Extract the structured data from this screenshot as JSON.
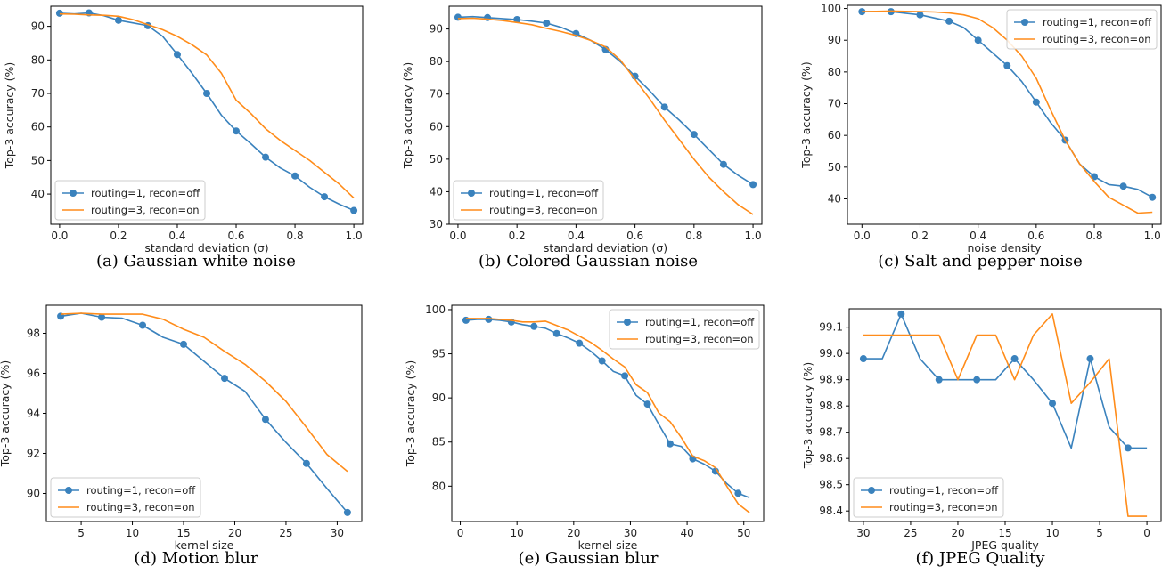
{
  "colors": {
    "routing1": "#3a82bd",
    "routing3": "#ff8c1a"
  },
  "chart_data": [
    {
      "id": "a",
      "type": "line",
      "caption": "(a) Gaussian white noise",
      "xlabel": "standard deviation (σ)",
      "ylabel": "Top-3 accuracy (%)",
      "xlim": [
        -0.03,
        1.03
      ],
      "ylim": [
        31,
        96
      ],
      "xticks": [
        0,
        0.2,
        0.4,
        0.6,
        0.8,
        1.0
      ],
      "xtick_labels": [
        "0.0",
        "0.2",
        "0.4",
        "0.6",
        "0.8",
        "1.0"
      ],
      "yticks": [
        40,
        50,
        60,
        70,
        80,
        90
      ],
      "ytick_labels": [
        "40",
        "50",
        "60",
        "70",
        "80",
        "90"
      ],
      "legend_position": "lower-left",
      "series": [
        {
          "name": "routing=1, recon=off",
          "markers": true,
          "x": [
            0,
            0.05,
            0.1,
            0.15,
            0.2,
            0.25,
            0.3,
            0.35,
            0.4,
            0.45,
            0.5,
            0.55,
            0.6,
            0.65,
            0.7,
            0.75,
            0.8,
            0.85,
            0.9,
            0.95,
            1.0
          ],
          "y": [
            93.9,
            93.7,
            94.0,
            93.2,
            91.8,
            91.0,
            90.2,
            87.0,
            81.6,
            76.0,
            70.0,
            63.5,
            58.8,
            55.0,
            51.0,
            47.8,
            45.4,
            42.0,
            39.2,
            37.0,
            35.1
          ],
          "marker_x": [
            0,
            0.1,
            0.2,
            0.3,
            0.4,
            0.5,
            0.6,
            0.7,
            0.8,
            0.9,
            1.0
          ],
          "marker_y": [
            93.9,
            94.0,
            91.8,
            90.2,
            81.6,
            70.0,
            58.8,
            51.0,
            45.4,
            39.2,
            35.1
          ]
        },
        {
          "name": "routing=3, recon=on",
          "markers": false,
          "x": [
            0,
            0.05,
            0.1,
            0.15,
            0.2,
            0.25,
            0.3,
            0.35,
            0.4,
            0.45,
            0.5,
            0.55,
            0.6,
            0.65,
            0.7,
            0.75,
            0.8,
            0.85,
            0.9,
            0.95,
            1.0
          ],
          "y": [
            93.7,
            93.6,
            93.4,
            93.3,
            93.0,
            92.0,
            90.5,
            89.0,
            87.0,
            84.5,
            81.5,
            76.0,
            68.0,
            64.0,
            59.5,
            56.0,
            53.0,
            50.0,
            46.5,
            43.0,
            38.8
          ]
        }
      ]
    },
    {
      "id": "b",
      "type": "line",
      "caption": "(b) Colored Gaussian noise",
      "xlabel": "standard deviation (σ)",
      "ylabel": "Top-3 accuracy (%)",
      "xlim": [
        -0.03,
        1.03
      ],
      "ylim": [
        30,
        97
      ],
      "xticks": [
        0,
        0.2,
        0.4,
        0.6,
        0.8,
        1.0
      ],
      "xtick_labels": [
        "0.0",
        "0.2",
        "0.4",
        "0.6",
        "0.8",
        "1.0"
      ],
      "yticks": [
        30,
        40,
        50,
        60,
        70,
        80,
        90
      ],
      "ytick_labels": [
        "30",
        "40",
        "50",
        "60",
        "70",
        "80",
        "90"
      ],
      "legend_position": "lower-left",
      "series": [
        {
          "name": "routing=1, recon=off",
          "markers": true,
          "x": [
            0,
            0.05,
            0.1,
            0.15,
            0.2,
            0.25,
            0.3,
            0.35,
            0.4,
            0.45,
            0.5,
            0.55,
            0.6,
            0.65,
            0.7,
            0.75,
            0.8,
            0.85,
            0.9,
            0.95,
            1.0
          ],
          "y": [
            93.6,
            93.8,
            93.5,
            93.2,
            92.9,
            92.4,
            91.8,
            90.5,
            88.6,
            86.5,
            83.7,
            80.0,
            75.5,
            71.0,
            66.0,
            62.0,
            57.6,
            53.0,
            48.4,
            45.0,
            42.2
          ],
          "marker_x": [
            0,
            0.1,
            0.2,
            0.3,
            0.4,
            0.5,
            0.6,
            0.7,
            0.8,
            0.9,
            1.0
          ],
          "marker_y": [
            93.6,
            93.5,
            92.9,
            91.8,
            88.6,
            83.7,
            75.5,
            66.0,
            57.6,
            48.4,
            42.2
          ]
        },
        {
          "name": "routing=3, recon=on",
          "markers": false,
          "x": [
            0,
            0.05,
            0.1,
            0.15,
            0.2,
            0.25,
            0.3,
            0.35,
            0.4,
            0.45,
            0.5,
            0.55,
            0.6,
            0.65,
            0.7,
            0.75,
            0.8,
            0.85,
            0.9,
            0.95,
            1.0
          ],
          "y": [
            93.2,
            93.3,
            93.0,
            92.6,
            92.0,
            91.3,
            90.2,
            89.2,
            88.0,
            86.5,
            84.5,
            80.5,
            74.5,
            68.5,
            62.0,
            56.0,
            50.0,
            44.5,
            40.0,
            36.0,
            33.0
          ]
        }
      ]
    },
    {
      "id": "c",
      "type": "line",
      "caption": "(c) Salt and pepper noise",
      "xlabel": "noise density",
      "ylabel": "Top-3 accuracy (%)",
      "xlim": [
        -0.05,
        1.03
      ],
      "ylim": [
        32,
        101
      ],
      "xticks": [
        0,
        0.2,
        0.4,
        0.6,
        0.8,
        1.0
      ],
      "xtick_labels": [
        "0.0",
        "0.2",
        "0.4",
        "0.6",
        "0.8",
        "1.0"
      ],
      "yticks": [
        40,
        50,
        60,
        70,
        80,
        90,
        100
      ],
      "ytick_labels": [
        "40",
        "50",
        "60",
        "70",
        "80",
        "90",
        "100"
      ],
      "legend_position": "upper-right",
      "series": [
        {
          "name": "routing=1, recon=off",
          "markers": true,
          "x": [
            0,
            0.05,
            0.1,
            0.15,
            0.2,
            0.25,
            0.3,
            0.35,
            0.4,
            0.45,
            0.5,
            0.55,
            0.6,
            0.65,
            0.7,
            0.75,
            0.8,
            0.85,
            0.9,
            0.95,
            1.0
          ],
          "y": [
            99.0,
            99.0,
            99.0,
            98.5,
            98.0,
            97.0,
            96.0,
            94.0,
            90.0,
            86.0,
            82.0,
            77.0,
            70.5,
            64.0,
            58.5,
            51.0,
            47.0,
            44.5,
            44.0,
            43.0,
            40.5
          ],
          "marker_x": [
            0,
            0.1,
            0.2,
            0.3,
            0.4,
            0.5,
            0.6,
            0.7,
            0.8,
            0.9,
            1.0
          ],
          "marker_y": [
            99.0,
            99.0,
            98.0,
            96.0,
            90.0,
            82.0,
            70.5,
            58.5,
            47.0,
            44.0,
            40.5
          ]
        },
        {
          "name": "routing=3, recon=on",
          "markers": false,
          "x": [
            0,
            0.05,
            0.1,
            0.15,
            0.2,
            0.25,
            0.3,
            0.35,
            0.4,
            0.45,
            0.5,
            0.55,
            0.6,
            0.65,
            0.7,
            0.75,
            0.8,
            0.85,
            0.9,
            0.95,
            1.0
          ],
          "y": [
            99.0,
            99.1,
            99.2,
            99.1,
            99.0,
            98.9,
            98.6,
            98.0,
            96.8,
            94.0,
            90.0,
            85.0,
            78.0,
            68.0,
            58.5,
            51.0,
            45.5,
            40.5,
            38.0,
            35.5,
            35.8
          ]
        }
      ]
    },
    {
      "id": "d",
      "type": "line",
      "caption": "(d) Motion blur",
      "xlabel": "kernel size",
      "ylabel": "Top-3 accuracy (%)",
      "xlim": [
        1.6,
        32.4
      ],
      "ylim": [
        88.6,
        99.4
      ],
      "xticks": [
        5,
        10,
        15,
        20,
        25,
        30
      ],
      "xtick_labels": [
        "5",
        "10",
        "15",
        "20",
        "25",
        "30"
      ],
      "yticks": [
        90,
        92,
        94,
        96,
        98
      ],
      "ytick_labels": [
        "90",
        "92",
        "94",
        "96",
        "98"
      ],
      "legend_position": "lower-left",
      "series": [
        {
          "name": "routing=1, recon=off",
          "markers": true,
          "x": [
            3,
            5,
            7,
            9,
            11,
            13,
            15,
            17,
            19,
            21,
            23,
            25,
            27,
            29,
            31
          ],
          "y": [
            98.85,
            99.0,
            98.8,
            98.75,
            98.4,
            97.8,
            97.45,
            96.6,
            95.75,
            95.1,
            93.7,
            92.55,
            91.5,
            90.25,
            89.05
          ],
          "marker_x": [
            3,
            7,
            11,
            15,
            19,
            23,
            27,
            31
          ],
          "marker_y": [
            98.85,
            98.8,
            98.4,
            97.45,
            95.75,
            93.7,
            91.5,
            89.05
          ]
        },
        {
          "name": "routing=3, recon=on",
          "markers": false,
          "x": [
            3,
            5,
            7,
            9,
            11,
            13,
            15,
            17,
            19,
            21,
            23,
            25,
            27,
            29,
            31
          ],
          "y": [
            98.95,
            99.0,
            98.95,
            98.95,
            98.95,
            98.7,
            98.2,
            97.8,
            97.1,
            96.45,
            95.6,
            94.6,
            93.3,
            91.95,
            91.1
          ]
        }
      ]
    },
    {
      "id": "e",
      "type": "line",
      "caption": "(e) Gaussian blur",
      "xlabel": "kernel size",
      "ylabel": "Top-3 accuracy (%)",
      "xlim": [
        -1.5,
        53.5
      ],
      "ylim": [
        76,
        100.5
      ],
      "xticks": [
        0,
        10,
        20,
        30,
        40,
        50
      ],
      "xtick_labels": [
        "0",
        "10",
        "20",
        "30",
        "40",
        "50"
      ],
      "yticks": [
        80,
        85,
        90,
        95,
        100
      ],
      "ytick_labels": [
        "80",
        "85",
        "90",
        "95",
        "100"
      ],
      "legend_position": "upper-right",
      "series": [
        {
          "name": "routing=1, recon=off",
          "markers": true,
          "x": [
            1,
            3,
            5,
            7,
            9,
            11,
            13,
            15,
            17,
            19,
            21,
            23,
            25,
            27,
            29,
            31,
            33,
            35,
            37,
            39,
            41,
            43,
            45,
            47,
            49,
            51
          ],
          "y": [
            98.8,
            98.9,
            98.9,
            98.8,
            98.6,
            98.3,
            98.1,
            97.9,
            97.3,
            96.8,
            96.2,
            95.3,
            94.2,
            93.0,
            92.5,
            90.3,
            89.3,
            87.0,
            84.8,
            84.5,
            83.1,
            82.5,
            81.7,
            80.3,
            79.2,
            78.7
          ],
          "marker_x": [
            1,
            5,
            9,
            13,
            17,
            21,
            25,
            29,
            33,
            37,
            41,
            45,
            49
          ],
          "marker_y": [
            98.8,
            98.9,
            98.6,
            98.1,
            97.3,
            96.2,
            94.2,
            92.5,
            89.3,
            84.8,
            83.1,
            81.7,
            79.2
          ]
        },
        {
          "name": "routing=3, recon=on",
          "markers": false,
          "x": [
            1,
            3,
            5,
            7,
            9,
            11,
            13,
            15,
            17,
            19,
            21,
            23,
            25,
            27,
            29,
            31,
            33,
            35,
            37,
            39,
            41,
            43,
            45,
            47,
            49,
            51
          ],
          "y": [
            99.0,
            99.0,
            99.0,
            98.9,
            98.8,
            98.6,
            98.6,
            98.7,
            98.2,
            97.7,
            97.0,
            96.3,
            95.4,
            94.4,
            93.5,
            91.5,
            90.6,
            88.3,
            87.3,
            85.5,
            83.4,
            82.9,
            82.1,
            80.0,
            78.0,
            77.0
          ]
        }
      ]
    },
    {
      "id": "f",
      "type": "line",
      "caption": "(f) JPEG Quality",
      "xlabel": "JPEG quality",
      "ylabel": "Top-3 accuracy (%)",
      "xlim": [
        31.5,
        -1.5
      ],
      "ylim": [
        98.36,
        99.17
      ],
      "xticks": [
        30,
        25,
        20,
        15,
        10,
        5,
        0
      ],
      "xtick_labels": [
        "30",
        "25",
        "20",
        "15",
        "10",
        "5",
        "0"
      ],
      "yticks": [
        98.4,
        98.5,
        98.6,
        98.7,
        98.8,
        98.9,
        99.0,
        99.1
      ],
      "ytick_labels": [
        "98.4",
        "98.5",
        "98.6",
        "98.7",
        "98.8",
        "98.9",
        "99.0",
        "99.1"
      ],
      "legend_position": "lower-left",
      "series": [
        {
          "name": "routing=1, recon=off",
          "markers": true,
          "x": [
            30,
            28,
            26,
            24,
            22,
            20,
            18,
            16,
            14,
            12,
            10,
            8,
            6,
            4,
            2,
            0
          ],
          "y": [
            98.98,
            98.98,
            99.15,
            98.98,
            98.9,
            98.9,
            98.9,
            98.9,
            98.98,
            98.9,
            98.81,
            98.64,
            98.98,
            98.72,
            98.64,
            98.64
          ],
          "marker_x": [
            30,
            26,
            22,
            18,
            14,
            10,
            6,
            2
          ],
          "marker_y": [
            98.98,
            99.15,
            98.9,
            98.9,
            98.98,
            98.81,
            98.98,
            98.64
          ]
        },
        {
          "name": "routing=3, recon=on",
          "markers": false,
          "x": [
            30,
            28,
            26,
            24,
            22,
            20,
            18,
            16,
            14,
            12,
            10,
            8,
            6,
            4,
            2,
            0
          ],
          "y": [
            99.07,
            99.07,
            99.07,
            99.07,
            99.07,
            98.9,
            99.07,
            99.07,
            98.9,
            99.07,
            99.15,
            98.81,
            98.89,
            98.98,
            98.38,
            98.38
          ]
        }
      ]
    }
  ]
}
